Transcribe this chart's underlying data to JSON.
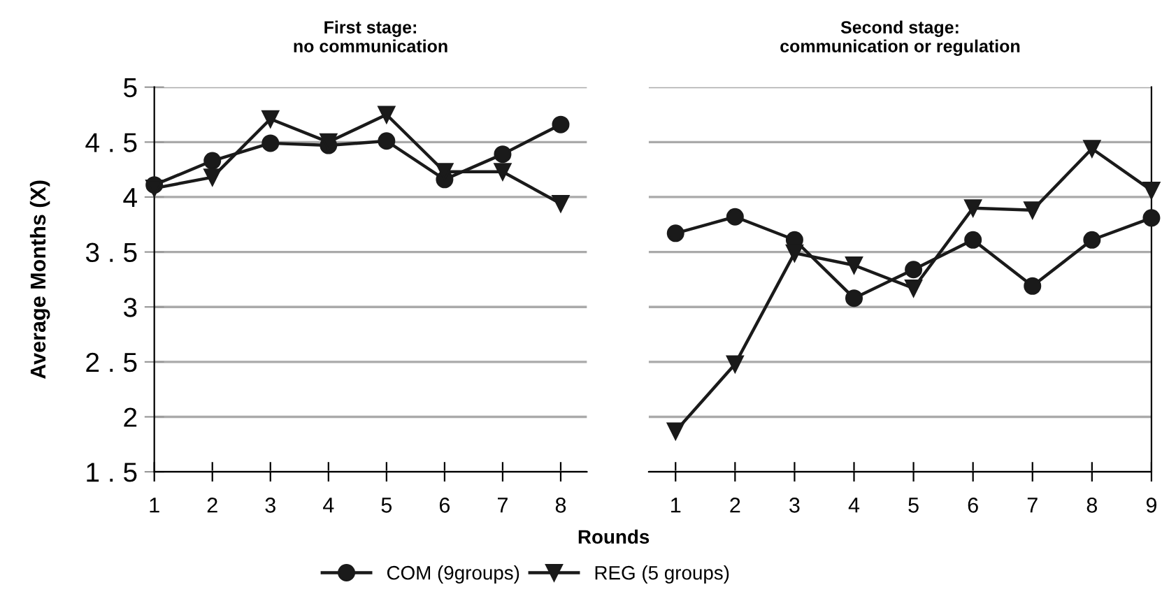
{
  "chart_data": [
    {
      "type": "line",
      "title": "First stage:\nno communication",
      "ylabel": "Average Months (X)",
      "x": [
        1,
        2,
        3,
        4,
        5,
        6,
        7,
        8
      ],
      "xlim": [
        1,
        8.45
      ],
      "xticks": [
        1,
        2,
        3,
        4,
        5,
        6,
        7,
        8
      ],
      "ylim": [
        1.5,
        5
      ],
      "yticks": [
        {
          "value": 1.5,
          "label": "1 . 5"
        },
        2,
        {
          "value": 2.5,
          "label": "2 . 5"
        },
        3,
        {
          "value": 3.5,
          "label": "3 . 5"
        },
        4,
        {
          "value": 4.5,
          "label": "4 . 5"
        },
        5
      ],
      "grid": "y",
      "legend": "bottom",
      "series": [
        {
          "name": "COM (9groups)",
          "color": "#1a1a1a",
          "marker": "circle",
          "values": [
            4.11,
            4.33,
            4.49,
            4.47,
            4.51,
            4.16,
            4.39,
            4.66
          ]
        },
        {
          "name": "REG (5 groups)",
          "color": "#1a1a1a",
          "marker": "triangle",
          "values": [
            4.08,
            4.18,
            4.71,
            4.5,
            4.75,
            4.23,
            4.23,
            3.94
          ]
        }
      ]
    },
    {
      "type": "line",
      "title": "Second stage:\ncommunication or regulation",
      "xlabel": "Rounds",
      "x": [
        1,
        2,
        3,
        4,
        5,
        6,
        7,
        8,
        9
      ],
      "xlim": [
        0.55,
        9
      ],
      "xticks": [
        1,
        2,
        3,
        4,
        5,
        6,
        7,
        8,
        9
      ],
      "ylim": [
        1.5,
        5
      ],
      "yticks": [
        1.5,
        2,
        2.5,
        3,
        3.5,
        4,
        4.5,
        5
      ],
      "grid": "y",
      "tick_labels": "x",
      "series": [
        {
          "color": "#1a1a1a",
          "marker": "circle",
          "values": [
            3.67,
            3.82,
            3.61,
            3.08,
            3.34,
            3.61,
            3.19,
            3.61,
            3.81
          ]
        },
        {
          "color": "#1a1a1a",
          "marker": "triangle",
          "values": [
            1.87,
            2.48,
            3.49,
            3.38,
            3.17,
            3.9,
            3.88,
            4.44,
            4.06
          ]
        }
      ]
    }
  ]
}
